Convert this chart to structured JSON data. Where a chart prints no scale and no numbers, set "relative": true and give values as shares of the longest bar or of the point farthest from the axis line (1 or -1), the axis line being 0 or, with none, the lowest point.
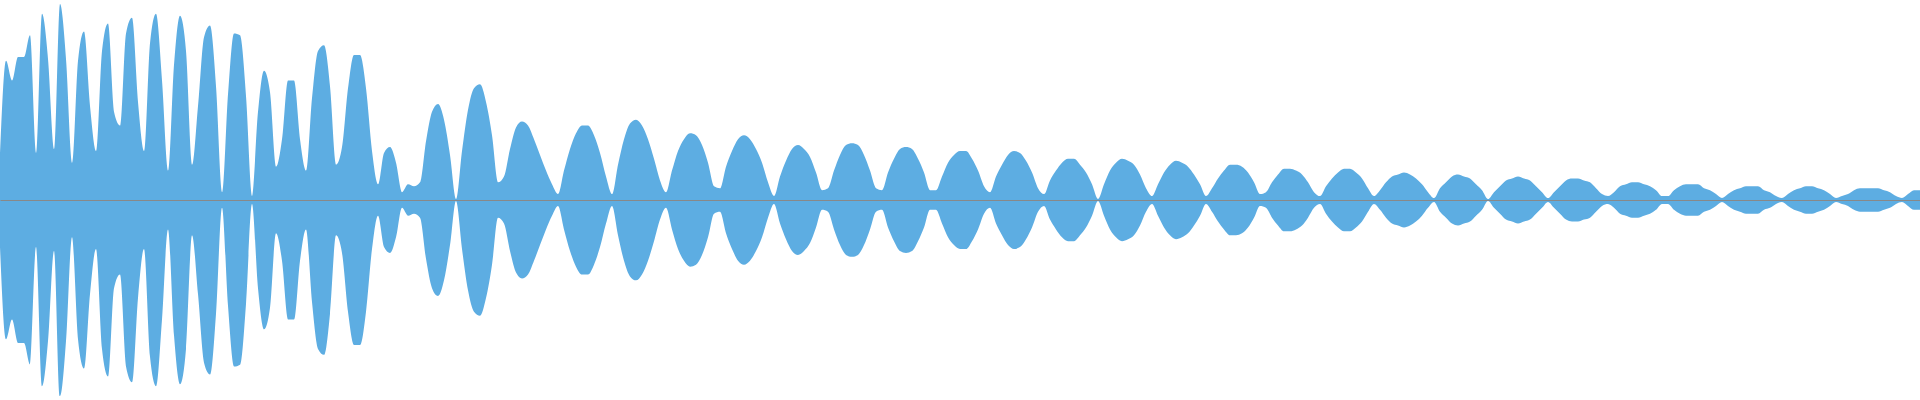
{
  "chart_data": {
    "type": "area",
    "relative": true,
    "tick_labels": false,
    "categories": [
      null,
      null,
      null,
      null,
      null,
      null,
      null,
      null,
      null,
      null,
      null,
      null,
      null,
      null,
      null,
      null,
      null,
      null,
      null,
      null,
      null,
      null,
      null,
      null,
      null,
      null,
      null,
      null,
      null,
      null,
      null,
      null,
      null,
      null,
      null,
      null,
      null,
      null,
      null,
      null,
      null,
      null,
      null,
      null,
      null,
      null,
      null,
      null,
      null,
      null,
      null,
      null,
      null,
      null,
      null,
      null,
      null,
      null,
      null,
      null,
      null,
      null,
      null,
      null,
      null,
      null,
      null,
      null,
      null,
      null,
      null,
      null,
      null,
      null,
      null,
      null,
      null,
      null,
      null,
      null,
      null,
      null,
      null,
      null,
      null,
      null,
      null,
      null,
      null,
      null,
      null,
      null,
      null,
      null,
      null,
      null,
      null,
      null,
      null,
      null,
      null,
      null,
      null,
      null,
      null,
      null,
      null,
      null,
      null,
      null,
      null,
      null,
      null,
      null,
      null,
      null,
      null,
      null,
      null,
      null,
      null,
      null,
      null,
      null,
      null,
      null,
      null,
      null,
      null,
      null,
      null,
      null,
      null,
      null,
      null,
      null,
      null,
      null,
      null,
      null,
      null,
      null,
      null,
      null,
      null,
      null,
      null,
      null,
      null,
      null,
      null,
      null,
      null,
      null,
      null,
      null,
      null,
      null,
      null,
      null,
      null,
      null,
      null,
      null,
      null,
      null,
      null,
      null,
      null,
      null,
      null,
      null,
      null,
      null,
      null,
      null,
      null,
      null,
      null,
      null,
      null,
      null,
      null,
      null,
      null,
      null,
      null,
      null,
      null,
      null,
      null,
      null,
      null,
      null,
      null,
      null,
      null,
      null,
      null,
      null,
      null,
      null,
      null,
      null,
      null,
      null,
      null,
      null,
      null,
      null,
      null,
      null,
      null,
      null,
      null,
      null,
      null,
      null,
      null,
      null,
      null,
      null,
      null,
      null,
      null,
      null,
      null,
      null,
      null,
      null,
      null,
      null,
      null,
      null,
      null,
      null,
      null,
      null,
      null,
      null,
      null,
      null,
      null,
      null,
      null,
      null,
      null,
      null,
      null,
      null,
      null,
      null,
      null,
      null,
      null,
      null,
      null,
      null,
      null,
      null,
      null,
      null,
      null,
      null,
      null,
      null,
      null,
      null,
      null,
      null,
      null,
      null,
      null,
      null,
      null,
      null,
      null,
      null,
      null,
      null,
      null,
      null,
      null,
      null,
      null,
      null,
      null,
      null,
      null,
      null,
      null,
      null,
      null,
      null,
      null,
      null,
      null,
      null,
      null,
      null,
      null,
      null,
      null,
      null,
      null,
      null,
      null,
      null,
      null,
      null,
      null,
      null,
      null,
      null,
      null,
      null,
      null,
      null,
      null,
      null,
      null
    ],
    "series": [
      {
        "color": "#5dade2",
        "values": [
          0.24,
          0.71,
          0.61,
          0.73,
          0.73,
          0.84,
          0.24,
          0.95,
          0.72,
          0.26,
          1,
          0.72,
          0.19,
          0.71,
          0.86,
          0.48,
          0.25,
          0.76,
          0.9,
          0.45,
          0.38,
          0.85,
          0.93,
          0.5,
          0.25,
          0.8,
          0.95,
          0.61,
          0.15,
          0.69,
          0.94,
          0.76,
          0.18,
          0.48,
          0.83,
          0.89,
          0.58,
          0.04,
          0.54,
          0.85,
          0.84,
          0.53,
          0.02,
          0.45,
          0.66,
          0.55,
          0.17,
          0.31,
          0.61,
          0.61,
          0.31,
          0.15,
          0.52,
          0.76,
          0.79,
          0.58,
          0.18,
          0.27,
          0.57,
          0.74,
          0.74,
          0.57,
          0.25,
          0.08,
          0.24,
          0.27,
          0.19,
          0.04,
          0.08,
          0.07,
          0.09,
          0.3,
          0.45,
          0.49,
          0.41,
          0.23,
          0.005,
          0.25,
          0.46,
          0.57,
          0.59,
          0.5,
          0.33,
          0.09,
          0.12,
          0.26,
          0.37,
          0.4,
          0.38,
          0.31,
          0.23,
          0.15,
          0.08,
          0.03,
          0.15,
          0.26,
          0.34,
          0.38,
          0.38,
          0.33,
          0.24,
          0.12,
          0.03,
          0.18,
          0.31,
          0.39,
          0.41,
          0.38,
          0.31,
          0.21,
          0.1,
          0.04,
          0.15,
          0.25,
          0.31,
          0.34,
          0.33,
          0.28,
          0.19,
          0.07,
          0.06,
          0.17,
          0.25,
          0.31,
          0.33,
          0.31,
          0.26,
          0.19,
          0.09,
          0.02,
          0.12,
          0.2,
          0.26,
          0.28,
          0.26,
          0.22,
          0.14,
          0.05,
          0.06,
          0.15,
          0.23,
          0.28,
          0.29,
          0.28,
          0.23,
          0.15,
          0.06,
          0.05,
          0.14,
          0.21,
          0.26,
          0.27,
          0.26,
          0.21,
          0.14,
          0.05,
          0.05,
          0.12,
          0.19,
          0.23,
          0.25,
          0.25,
          0.21,
          0.15,
          0.07,
          0.04,
          0.12,
          0.18,
          0.23,
          0.25,
          0.24,
          0.2,
          0.14,
          0.06,
          0.03,
          0.1,
          0.15,
          0.19,
          0.21,
          0.21,
          0.18,
          0.14,
          0.08,
          0.005,
          0.08,
          0.15,
          0.19,
          0.21,
          0.2,
          0.18,
          0.13,
          0.06,
          0.02,
          0.08,
          0.14,
          0.18,
          0.2,
          0.19,
          0.17,
          0.13,
          0.08,
          0.02,
          0.06,
          0.11,
          0.15,
          0.18,
          0.18,
          0.17,
          0.14,
          0.09,
          0.03,
          0.04,
          0.09,
          0.13,
          0.16,
          0.16,
          0.15,
          0.13,
          0.09,
          0.04,
          0.02,
          0.07,
          0.11,
          0.14,
          0.16,
          0.16,
          0.14,
          0.11,
          0.06,
          0.02,
          0.05,
          0.09,
          0.12,
          0.13,
          0.14,
          0.13,
          0.11,
          0.08,
          0.04,
          0.01,
          0.06,
          0.09,
          0.12,
          0.13,
          0.12,
          0.11,
          0.08,
          0.05,
          0.005,
          0.04,
          0.07,
          0.1,
          0.11,
          0.12,
          0.11,
          0.1,
          0.07,
          0.04,
          0.01,
          0.04,
          0.07,
          0.1,
          0.11,
          0.11,
          0.1,
          0.09,
          0.06,
          0.03,
          0.02,
          0.04,
          0.07,
          0.08,
          0.09,
          0.09,
          0.08,
          0.07,
          0.05,
          0.02,
          0.02,
          0.05,
          0.07,
          0.08,
          0.08,
          0.08,
          0.06,
          0.05,
          0.03,
          0.01,
          0.03,
          0.05,
          0.06,
          0.07,
          0.07,
          0.07,
          0.05,
          0.04,
          0.02,
          0.01,
          0.03,
          0.05,
          0.06,
          0.07,
          0.07,
          0.06,
          0.05,
          0.03,
          0.01,
          0.02,
          0.03,
          0.05,
          0.06,
          0.06,
          0.06,
          0.06,
          0.05,
          0.04,
          0.02,
          0.01,
          0.03,
          0.05,
          0.05
        ]
      },
      {
        "color": "#5dade2",
        "values": [
          -0.24,
          -0.71,
          -0.61,
          -0.73,
          -0.73,
          -0.84,
          -0.24,
          -0.95,
          -0.72,
          -0.26,
          -1,
          -0.72,
          -0.19,
          -0.71,
          -0.86,
          -0.48,
          -0.25,
          -0.76,
          -0.9,
          -0.45,
          -0.38,
          -0.85,
          -0.93,
          -0.5,
          -0.25,
          -0.8,
          -0.95,
          -0.61,
          -0.15,
          -0.69,
          -0.94,
          -0.76,
          -0.18,
          -0.48,
          -0.83,
          -0.89,
          -0.58,
          -0.04,
          -0.54,
          -0.85,
          -0.84,
          -0.53,
          -0.02,
          -0.45,
          -0.66,
          -0.55,
          -0.17,
          -0.31,
          -0.61,
          -0.61,
          -0.31,
          -0.15,
          -0.52,
          -0.76,
          -0.79,
          -0.58,
          -0.18,
          -0.27,
          -0.57,
          -0.74,
          -0.74,
          -0.57,
          -0.25,
          -0.08,
          -0.24,
          -0.27,
          -0.19,
          -0.04,
          -0.08,
          -0.07,
          -0.09,
          -0.3,
          -0.45,
          -0.49,
          -0.41,
          -0.23,
          -0.005,
          -0.25,
          -0.46,
          -0.57,
          -0.59,
          -0.5,
          -0.33,
          -0.09,
          -0.12,
          -0.26,
          -0.37,
          -0.4,
          -0.38,
          -0.31,
          -0.23,
          -0.15,
          -0.08,
          -0.03,
          -0.15,
          -0.26,
          -0.34,
          -0.38,
          -0.38,
          -0.33,
          -0.24,
          -0.12,
          -0.03,
          -0.18,
          -0.31,
          -0.39,
          -0.41,
          -0.38,
          -0.31,
          -0.21,
          -0.1,
          -0.04,
          -0.15,
          -0.25,
          -0.31,
          -0.34,
          -0.33,
          -0.28,
          -0.19,
          -0.07,
          -0.06,
          -0.17,
          -0.25,
          -0.31,
          -0.33,
          -0.31,
          -0.26,
          -0.19,
          -0.09,
          -0.02,
          -0.12,
          -0.2,
          -0.26,
          -0.28,
          -0.26,
          -0.22,
          -0.14,
          -0.05,
          -0.06,
          -0.15,
          -0.23,
          -0.28,
          -0.29,
          -0.28,
          -0.23,
          -0.15,
          -0.06,
          -0.05,
          -0.14,
          -0.21,
          -0.26,
          -0.27,
          -0.26,
          -0.21,
          -0.14,
          -0.05,
          -0.05,
          -0.12,
          -0.19,
          -0.23,
          -0.25,
          -0.25,
          -0.21,
          -0.15,
          -0.07,
          -0.04,
          -0.12,
          -0.18,
          -0.23,
          -0.25,
          -0.24,
          -0.2,
          -0.14,
          -0.06,
          -0.03,
          -0.1,
          -0.15,
          -0.19,
          -0.21,
          -0.21,
          -0.18,
          -0.14,
          -0.08,
          -0.005,
          -0.08,
          -0.15,
          -0.19,
          -0.21,
          -0.2,
          -0.18,
          -0.13,
          -0.06,
          -0.02,
          -0.08,
          -0.14,
          -0.18,
          -0.2,
          -0.19,
          -0.17,
          -0.13,
          -0.08,
          -0.02,
          -0.06,
          -0.11,
          -0.15,
          -0.18,
          -0.18,
          -0.17,
          -0.14,
          -0.09,
          -0.03,
          -0.04,
          -0.09,
          -0.13,
          -0.16,
          -0.16,
          -0.15,
          -0.13,
          -0.09,
          -0.04,
          -0.02,
          -0.07,
          -0.11,
          -0.14,
          -0.16,
          -0.16,
          -0.14,
          -0.11,
          -0.06,
          -0.02,
          -0.05,
          -0.09,
          -0.12,
          -0.13,
          -0.14,
          -0.13,
          -0.11,
          -0.08,
          -0.04,
          -0.01,
          -0.06,
          -0.09,
          -0.12,
          -0.13,
          -0.12,
          -0.11,
          -0.08,
          -0.05,
          -0.005,
          -0.04,
          -0.07,
          -0.1,
          -0.11,
          -0.12,
          -0.11,
          -0.1,
          -0.07,
          -0.04,
          -0.01,
          -0.04,
          -0.07,
          -0.1,
          -0.11,
          -0.11,
          -0.1,
          -0.09,
          -0.06,
          -0.03,
          -0.02,
          -0.04,
          -0.07,
          -0.08,
          -0.09,
          -0.09,
          -0.08,
          -0.07,
          -0.05,
          -0.02,
          -0.02,
          -0.05,
          -0.07,
          -0.08,
          -0.08,
          -0.08,
          -0.06,
          -0.05,
          -0.03,
          -0.01,
          -0.03,
          -0.05,
          -0.06,
          -0.07,
          -0.07,
          -0.07,
          -0.05,
          -0.04,
          -0.02,
          -0.01,
          -0.03,
          -0.05,
          -0.06,
          -0.07,
          -0.07,
          -0.06,
          -0.05,
          -0.03,
          -0.01,
          -0.02,
          -0.03,
          -0.05,
          -0.06,
          -0.06,
          -0.06,
          -0.06,
          -0.05,
          -0.04,
          -0.02,
          -0.01,
          -0.03,
          -0.05,
          -0.05
        ]
      }
    ]
  }
}
